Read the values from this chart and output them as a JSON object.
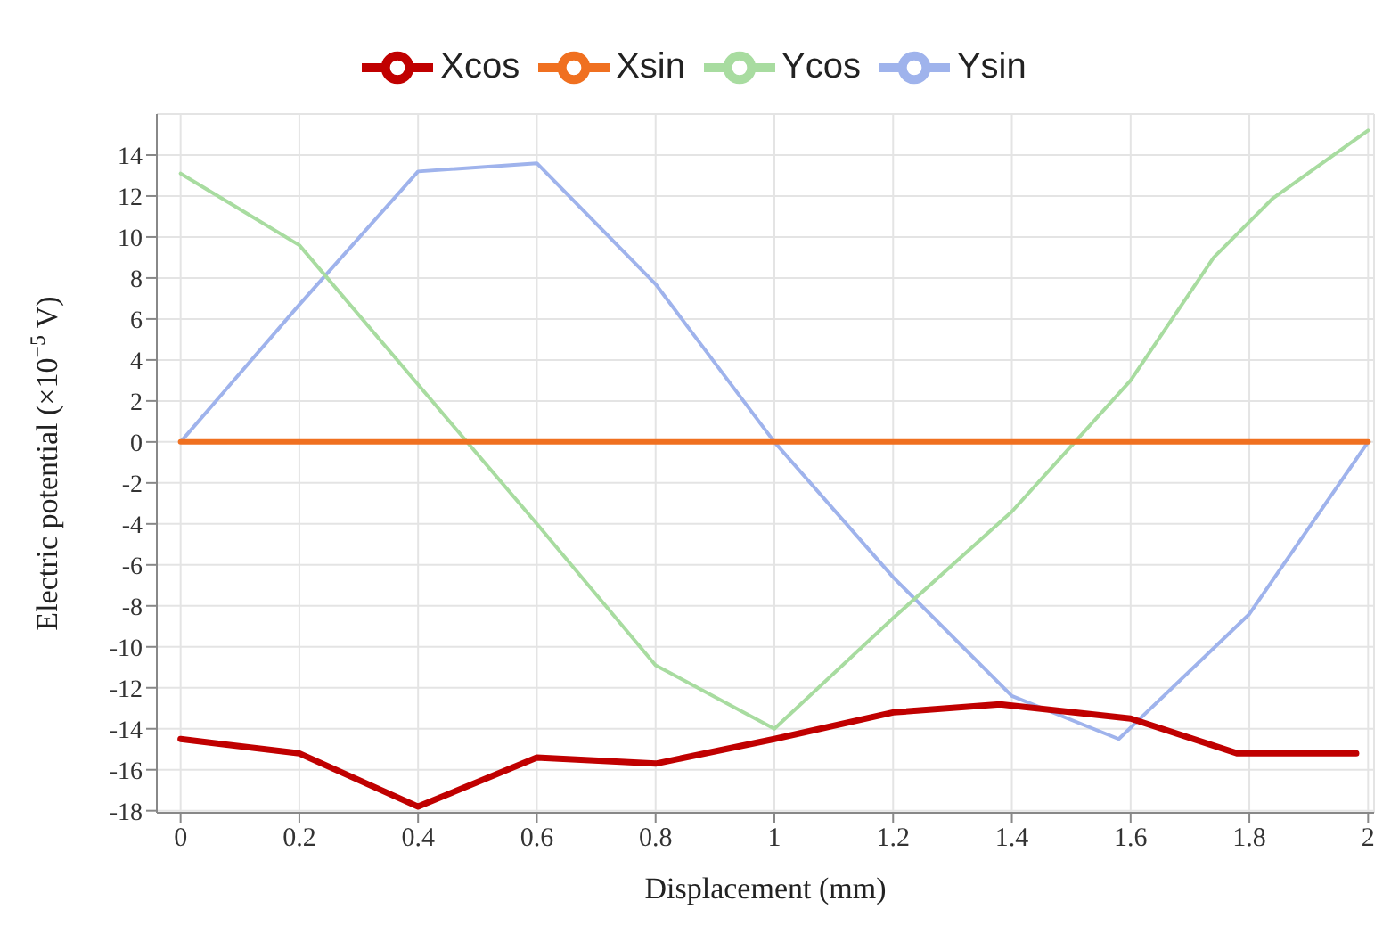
{
  "chart_data": {
    "type": "line",
    "xlabel": "Displacement (mm)",
    "ylabel": "Electric potential (×10$^{−5}$ V)",
    "xlim": [
      -0.04,
      2.01
    ],
    "ylim": [
      -18.1,
      16
    ],
    "xticks": [
      0,
      0.2,
      0.4,
      0.6,
      0.8,
      1,
      1.2,
      1.4,
      1.6,
      1.8,
      2
    ],
    "yticks": [
      -18,
      -16,
      -14,
      -12,
      -10,
      -8,
      -6,
      -4,
      -2,
      0,
      2,
      4,
      6,
      8,
      10,
      12,
      14
    ],
    "grid": true,
    "legend": "top",
    "marker": "none",
    "line_style": "solid",
    "series": [
      {
        "name": "Ysin",
        "color": "#9fb3ec",
        "x": [
          0,
          0.2,
          0.4,
          0.6,
          0.8,
          1.0,
          1.2,
          1.4,
          1.58,
          1.8,
          2.0
        ],
        "values": [
          0,
          6.7,
          13.2,
          13.6,
          7.7,
          0,
          -6.6,
          -12.4,
          -14.5,
          -8.4,
          0
        ]
      },
      {
        "name": "Ycos",
        "color": "#a8dca0",
        "x": [
          0,
          0.2,
          0.4,
          0.6,
          0.8,
          1.0,
          1.2,
          1.4,
          1.6,
          1.74,
          1.84,
          2.0
        ],
        "values": [
          13.1,
          9.6,
          2.8,
          -4.0,
          -10.9,
          -14.0,
          -8.6,
          -3.4,
          3.0,
          9.0,
          11.9,
          15.2
        ]
      },
      {
        "name": "Xsin",
        "color": "#f07020",
        "x": [
          0,
          2
        ],
        "values": [
          0,
          0
        ]
      },
      {
        "name": "Xcos",
        "color": "#c00000",
        "x": [
          0,
          0.2,
          0.4,
          0.6,
          0.8,
          1.0,
          1.2,
          1.38,
          1.6,
          1.78,
          1.98
        ],
        "values": [
          -14.5,
          -15.2,
          -17.8,
          -15.4,
          -15.7,
          -14.5,
          -13.2,
          -12.8,
          -13.5,
          -15.2,
          -15.2
        ]
      }
    ]
  }
}
